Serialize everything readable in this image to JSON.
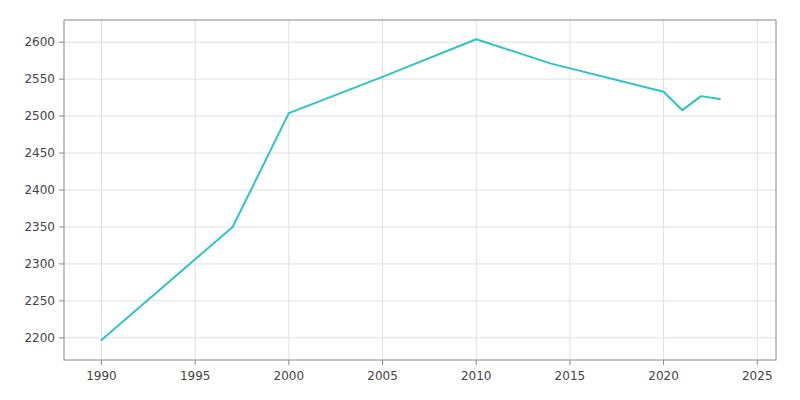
{
  "chart_data": {
    "type": "line",
    "x": [
      1990,
      1997,
      2000,
      2005,
      2010,
      2014,
      2020,
      2021,
      2022,
      2023
    ],
    "values": [
      2197,
      2350,
      2504,
      2553,
      2604,
      2571,
      2533,
      2508,
      2527,
      2523
    ],
    "color": "#2ec4c4",
    "xlim": [
      1988,
      2026
    ],
    "ylim": [
      2170,
      2630
    ],
    "xticks": [
      1990,
      1995,
      2000,
      2005,
      2010,
      2015,
      2020,
      2025
    ],
    "yticks": [
      2200,
      2250,
      2300,
      2350,
      2400,
      2450,
      2500,
      2550,
      2600
    ],
    "grid": true
  }
}
